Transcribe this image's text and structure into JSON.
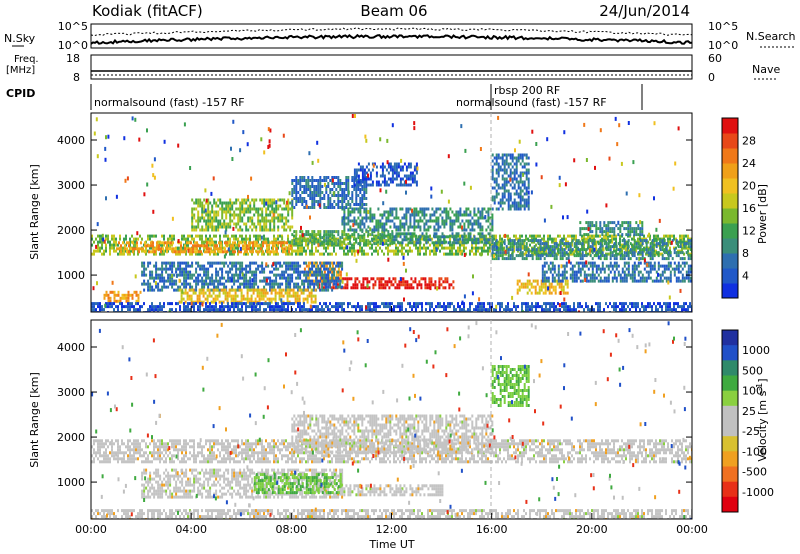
{
  "header": {
    "radar": "Kodiak (fitACF)",
    "beam": "Beam 06",
    "date": "24/Jun/2014"
  },
  "top_panels": {
    "nsky_label": "N.Sky",
    "nsearch_label": "N.Search",
    "left_ticks": [
      "10^5",
      "10^0"
    ],
    "right_ticks": [
      "10^5",
      "10^0"
    ],
    "freq_label_line1": "Freq.",
    "freq_label_line2": "[MHz]",
    "freq_ticks": [
      "18",
      "8"
    ],
    "nave_label": "Nave",
    "nave_ticks": [
      "60",
      "0"
    ],
    "cpid_label": "CPID"
  },
  "cpid_segments": [
    {
      "label": "normalsound (fast) -157 RF",
      "start": 0,
      "end": 16
    },
    {
      "label": "rbsp 200 RF",
      "start": 16,
      "end": 16.2
    },
    {
      "label": "normalsound (fast) -157 RF",
      "start": 16.2,
      "end": 24
    }
  ],
  "axes": {
    "xlabel": "Time UT",
    "ylabel": "Slant Range [km]",
    "x_ticks": [
      "00:00",
      "04:00",
      "08:00",
      "12:00",
      "16:00",
      "20:00",
      "00:00"
    ],
    "y_ticks": [
      1000,
      2000,
      3000,
      4000
    ],
    "ylim": [
      180,
      4600
    ],
    "xlim": [
      0,
      24
    ]
  },
  "colorbars": {
    "power": {
      "label": "Power [dB]",
      "ticks": [
        "4",
        "8",
        "12",
        "16",
        "20",
        "24",
        "28"
      ],
      "colors": [
        "#1030e0",
        "#2058c8",
        "#2e6fb0",
        "#3a8e7a",
        "#3aa050",
        "#7ab82e",
        "#c8c81e",
        "#f0c020",
        "#f0a018",
        "#f07818",
        "#e84818",
        "#e01010"
      ]
    },
    "velocity": {
      "label": "Velocity [m s",
      "label_sup": "-1",
      "label_end": "]",
      "ticks": [
        "1000",
        "500",
        "100",
        "25",
        "-25",
        "-100",
        "-500",
        "-1000"
      ],
      "colors": [
        "#2030a0",
        "#2050c8",
        "#2f8a6a",
        "#3faa40",
        "#8ad040",
        "#c0c0c0",
        "#c0c0c0",
        "#d8c030",
        "#f0a020",
        "#f07020",
        "#e83018",
        "#e00010"
      ]
    }
  },
  "chart_data": {
    "type": "heatmap",
    "title": "Kodiak (fitACF)",
    "xlabel": "Time UT",
    "ylabel": "Slant Range [km]",
    "xlim": [
      0,
      24
    ],
    "ylim": [
      180,
      4600
    ],
    "power_bands": [
      {
        "t": [
          0,
          24
        ],
        "r": [
          1450,
          1900
        ],
        "db": 14
      },
      {
        "t": [
          1,
          8
        ],
        "r": [
          1550,
          1750
        ],
        "db": 22
      },
      {
        "t": [
          8,
          12
        ],
        "r": [
          1700,
          2000
        ],
        "db": 12
      },
      {
        "t": [
          12,
          16
        ],
        "r": [
          1700,
          1950
        ],
        "db": 10
      },
      {
        "t": [
          16,
          24
        ],
        "r": [
          1350,
          1800
        ],
        "db": 10
      },
      {
        "t": [
          9,
          14.5
        ],
        "r": [
          750,
          950
        ],
        "db": 28
      },
      {
        "t": [
          8.5,
          10
        ],
        "r": [
          900,
          1300
        ],
        "db": 22
      },
      {
        "t": [
          2,
          10
        ],
        "r": [
          700,
          1300
        ],
        "db": 8
      },
      {
        "t": [
          3.5,
          9
        ],
        "r": [
          400,
          700
        ],
        "db": 20
      },
      {
        "t": [
          0.5,
          2
        ],
        "r": [
          400,
          650
        ],
        "db": 22
      },
      {
        "t": [
          10,
          16
        ],
        "r": [
          2000,
          2500
        ],
        "db": 10
      },
      {
        "t": [
          4,
          8
        ],
        "r": [
          2000,
          2700
        ],
        "db": 14
      },
      {
        "t": [
          8,
          11
        ],
        "r": [
          2500,
          3200
        ],
        "db": 8
      },
      {
        "t": [
          10.5,
          13
        ],
        "r": [
          3000,
          3500
        ],
        "db": 6
      },
      {
        "t": [
          0,
          24
        ],
        "r": [
          180,
          400
        ],
        "db": 6
      },
      {
        "t": [
          17,
          19
        ],
        "r": [
          600,
          900
        ],
        "db": 20
      },
      {
        "t": [
          16,
          17.5
        ],
        "r": [
          2500,
          3700
        ],
        "db": 8
      },
      {
        "t": [
          19.5,
          22
        ],
        "r": [
          1900,
          2200
        ],
        "db": 10
      },
      {
        "t": [
          18,
          24
        ],
        "r": [
          900,
          1300
        ],
        "db": 8
      }
    ],
    "velocity_bands": [
      {
        "t": [
          0,
          24
        ],
        "r": [
          1450,
          1950
        ],
        "v": 0
      },
      {
        "t": [
          8,
          16
        ],
        "r": [
          1700,
          2500
        ],
        "v": 0
      },
      {
        "t": [
          2,
          10
        ],
        "r": [
          700,
          1300
        ],
        "v": 0
      },
      {
        "t": [
          6.5,
          10
        ],
        "r": [
          750,
          1200
        ],
        "v": 80
      },
      {
        "t": [
          10,
          14
        ],
        "r": [
          750,
          950
        ],
        "v": 0
      },
      {
        "t": [
          16,
          17.5
        ],
        "r": [
          2700,
          3600
        ],
        "v": 60
      },
      {
        "t": [
          0,
          24
        ],
        "r": [
          180,
          400
        ],
        "v": 0
      }
    ]
  }
}
